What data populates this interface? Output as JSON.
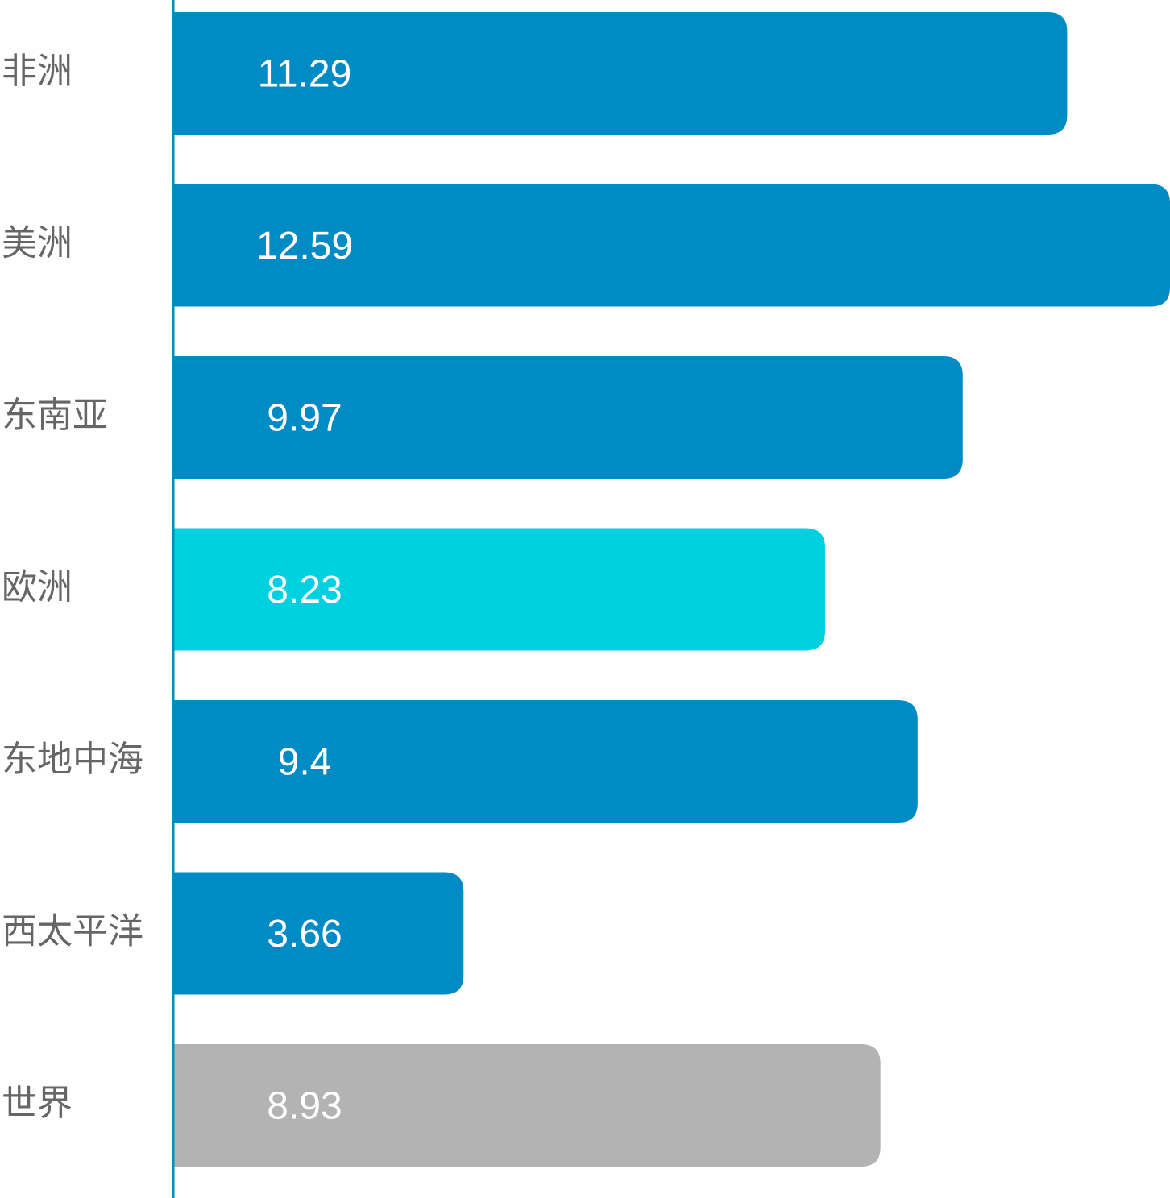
{
  "chart_data": {
    "type": "bar",
    "orientation": "horizontal",
    "categories": [
      "非洲",
      "美洲",
      "东南亚",
      "欧洲",
      "东地中海",
      "西太平洋",
      "世界"
    ],
    "values": [
      11.29,
      12.59,
      9.97,
      8.23,
      9.4,
      3.66,
      8.93
    ],
    "colors": [
      "#008bc4",
      "#008bc4",
      "#008bc4",
      "#00d0e0",
      "#008bc4",
      "#008bc4",
      "#b3b3b3"
    ],
    "axis_color": "#008bc4"
  }
}
